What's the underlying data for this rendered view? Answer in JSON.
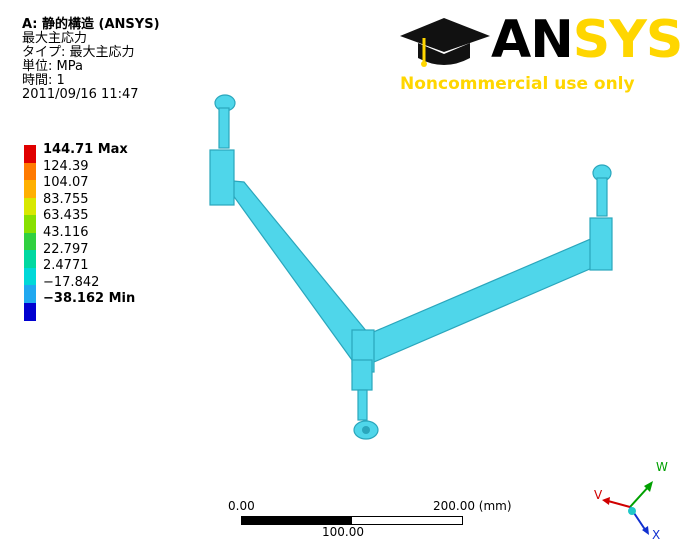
{
  "info": {
    "title": "A: 静的構造 (ANSYS)",
    "result": "最大主応力",
    "type_line": "タイプ: 最大主応力",
    "unit_line": "単位: MPa",
    "time_line": "時間: 1",
    "timestamp": "2011/09/16 11:47"
  },
  "legend": {
    "entries": [
      {
        "label": "144.71  Max",
        "color": "#e00000"
      },
      {
        "label": "124.39",
        "color": "#ff7a00"
      },
      {
        "label": "104.07",
        "color": "#ffb000"
      },
      {
        "label": "83.755",
        "color": "#d8e800"
      },
      {
        "label": "63.435",
        "color": "#88e000"
      },
      {
        "label": "43.116",
        "color": "#30d040"
      },
      {
        "label": "22.797",
        "color": "#00d8a0"
      },
      {
        "label": "2.4771",
        "color": "#00d8d8"
      },
      {
        "label": "−17.842",
        "color": "#20a8f0"
      },
      {
        "label": "−38.162  Min",
        "color": "#0000d0"
      }
    ]
  },
  "logo": {
    "brand": "ANSYS",
    "tagline": "Noncommercial use only",
    "accent": "#ffd600"
  },
  "scale_bar": {
    "left": "0.00",
    "right": "200.00 (mm)",
    "mid": "100.00"
  },
  "axes": {
    "w": "W",
    "v": "V",
    "x": "X",
    "colors": {
      "w": "#00a000",
      "v": "#d00000",
      "x": "#1030d0"
    }
  },
  "model": {
    "body_color": "#4fd6ea"
  }
}
